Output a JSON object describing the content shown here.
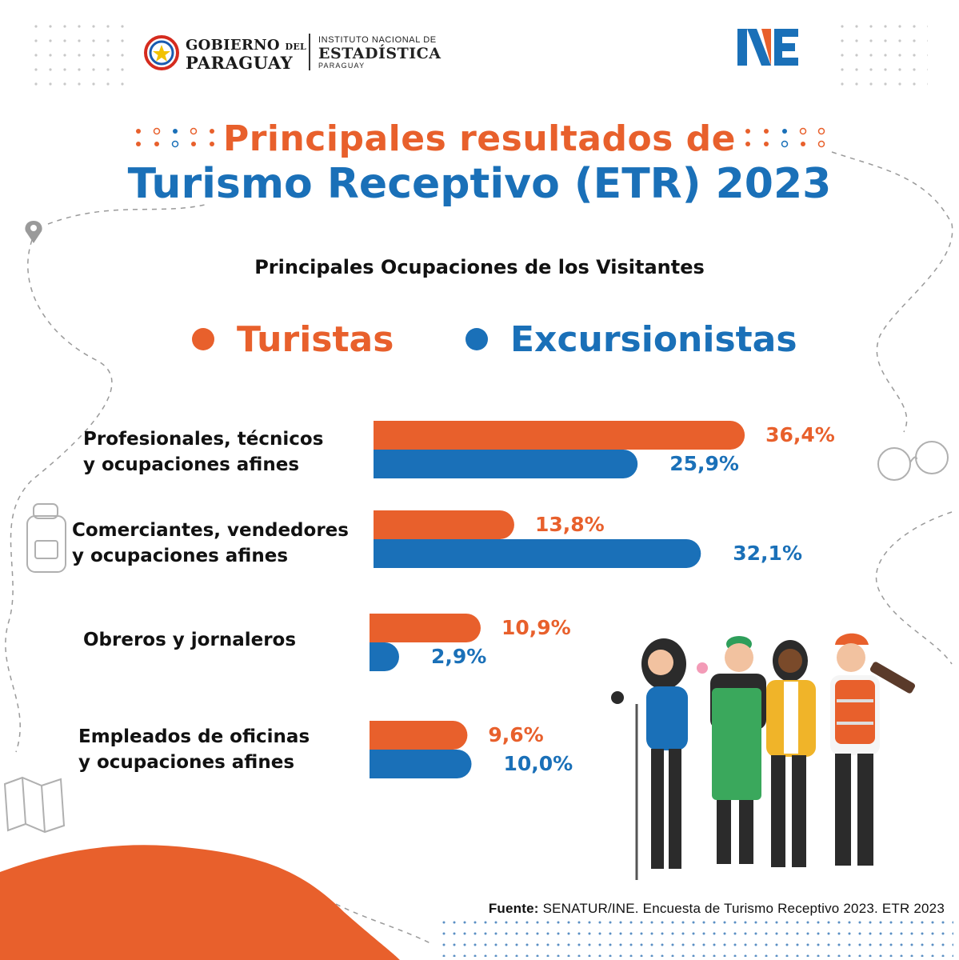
{
  "header": {
    "gov_line1": "GOBIERNO",
    "gov_line1_small": "DEL",
    "gov_line2": "PARAGUAY",
    "ine_line1": "INSTITUTO NACIONAL DE",
    "ine_line2": "ESTADÍSTICA",
    "ine_line3": "PARAGUAY",
    "ne_logo": "NE"
  },
  "title_line1": "Principales resultados de",
  "title_line2": "Turismo Receptivo (ETR) 2023",
  "colors": {
    "orange": "#e8602c",
    "blue": "#1a70b8"
  },
  "chart_data": {
    "type": "bar",
    "orientation": "horizontal",
    "title": "Principales Ocupaciones de los Visitantes",
    "legend_placement": "top",
    "grid": false,
    "categories": [
      [
        "Profesionales, técnicos",
        "y ocupaciones afines"
      ],
      [
        "Comerciantes, vendedores",
        "y ocupaciones afines"
      ],
      [
        "Obreros y jornaleros"
      ],
      [
        "Empleados de oficinas",
        "y ocupaciones afines"
      ]
    ],
    "series": [
      {
        "name": "Turistas",
        "color": "#e8602c",
        "values": [
          36.4,
          13.8,
          10.9,
          9.6
        ],
        "labels": [
          "36,4%",
          "13,8%",
          "10,9%",
          "9,6%"
        ]
      },
      {
        "name": "Excursionistas",
        "color": "#1a70b8",
        "values": [
          25.9,
          32.1,
          2.9,
          10.0
        ],
        "labels": [
          "25,9%",
          "32,1%",
          "2,9%",
          "10,0%"
        ]
      }
    ],
    "unit": "%"
  },
  "footer": {
    "source_label": "Fuente:",
    "source_text": "SENATUR/INE. Encuesta de Turismo Receptivo 2023. ETR 2023"
  }
}
